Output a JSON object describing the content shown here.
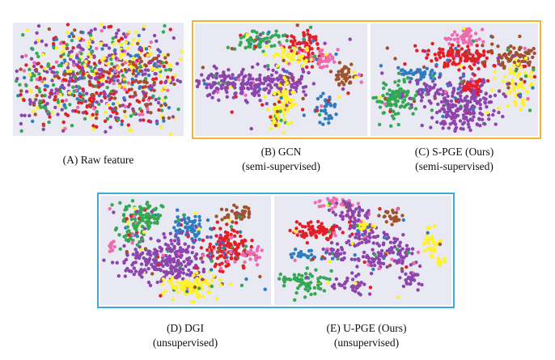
{
  "figure": {
    "panels": [
      {
        "key": "A",
        "caption_line1": "(A)  Raw  feature",
        "caption_line2": ""
      },
      {
        "key": "B",
        "caption_line1": "(B) GCN",
        "caption_line2": "(semi-supervised)"
      },
      {
        "key": "C",
        "caption_line1": "(C) S-PGE (Ours)",
        "caption_line2": "(semi-supervised)"
      },
      {
        "key": "D",
        "caption_line1": "(D) DGI",
        "caption_line2": "(unsupervised)"
      },
      {
        "key": "E",
        "caption_line1": "(E) U-PGE (Ours)",
        "caption_line2": "(unsupervised)"
      }
    ],
    "class_colors": [
      "#8e44ad",
      "#e21f26",
      "#34a853",
      "#fff22a",
      "#2f7dc0",
      "#a0522d",
      "#f06ab0"
    ],
    "frame_colors": {
      "top": "#f2b52c",
      "bottom": "#3aaad8"
    },
    "background": "#e8e9f3"
  }
}
